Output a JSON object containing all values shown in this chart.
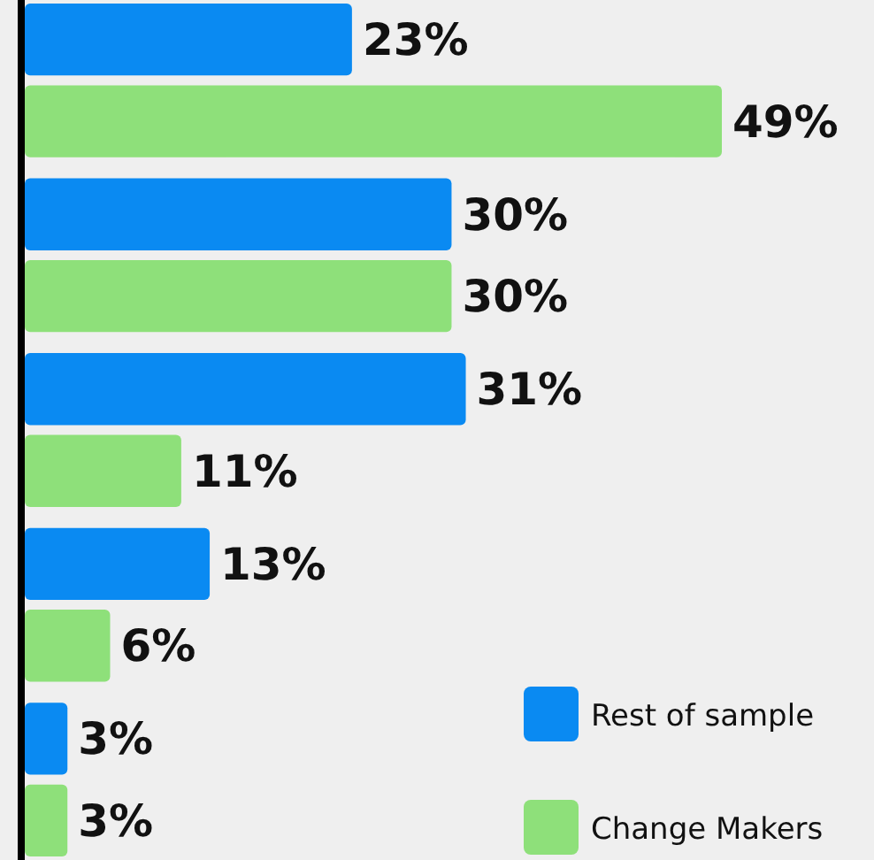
{
  "chart_data": {
    "type": "bar",
    "orientation": "horizontal",
    "categories": [
      null,
      null,
      null,
      null,
      null
    ],
    "tick_labels": false,
    "legend": "bottom right",
    "series": [
      {
        "name": "Rest of sample",
        "color": "#0a8af2",
        "values": [
          23,
          30,
          31,
          13,
          3
        ],
        "value_labels": [
          "23%",
          "30%",
          "31%",
          "13%",
          "3%"
        ]
      },
      {
        "name": "Change Makers",
        "color": "#8ee07a",
        "values": [
          49,
          30,
          11,
          6,
          3
        ],
        "value_labels": [
          "49%",
          "30%",
          "11%",
          "6%",
          "3%"
        ]
      }
    ]
  }
}
